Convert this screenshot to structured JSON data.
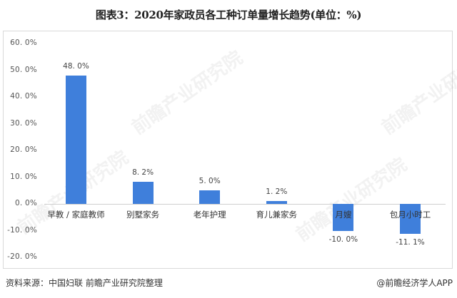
{
  "title": "图表3：2020年家政员各工种订单量增长趋势(单位：%)",
  "source": "资料来源：中国妇联 前瞻产业研究院整理",
  "credit": "@前瞻经济学人APP",
  "watermark": "前瞻产业研究院",
  "colors": {
    "bar": "#3f7fdb",
    "axis": "#cfcfcf",
    "frame": "#d9d9d9"
  },
  "chart_data": {
    "type": "bar",
    "title": "图表3：2020年家政员各工种订单量增长趋势(单位：%)",
    "xlabel": "",
    "ylabel": "",
    "ylim": [
      -20,
      60
    ],
    "yticks": [
      "60.0%",
      "50.0%",
      "40.0%",
      "30.0%",
      "20.0%",
      "10.0%",
      "0.0%",
      "-10.0%",
      "-20.0%"
    ],
    "grid": false,
    "legend": null,
    "categories": [
      "早教 / 家庭教师",
      "别墅家务",
      "老年护理",
      "育儿兼家务",
      "月嫂",
      "包月小时工"
    ],
    "values": [
      48.0,
      8.2,
      5.0,
      1.2,
      -10.0,
      -11.1
    ],
    "value_labels": [
      "48.0%",
      "8.2%",
      "5.0%",
      "1.2%",
      "-10.0%",
      "-11.1%"
    ]
  }
}
